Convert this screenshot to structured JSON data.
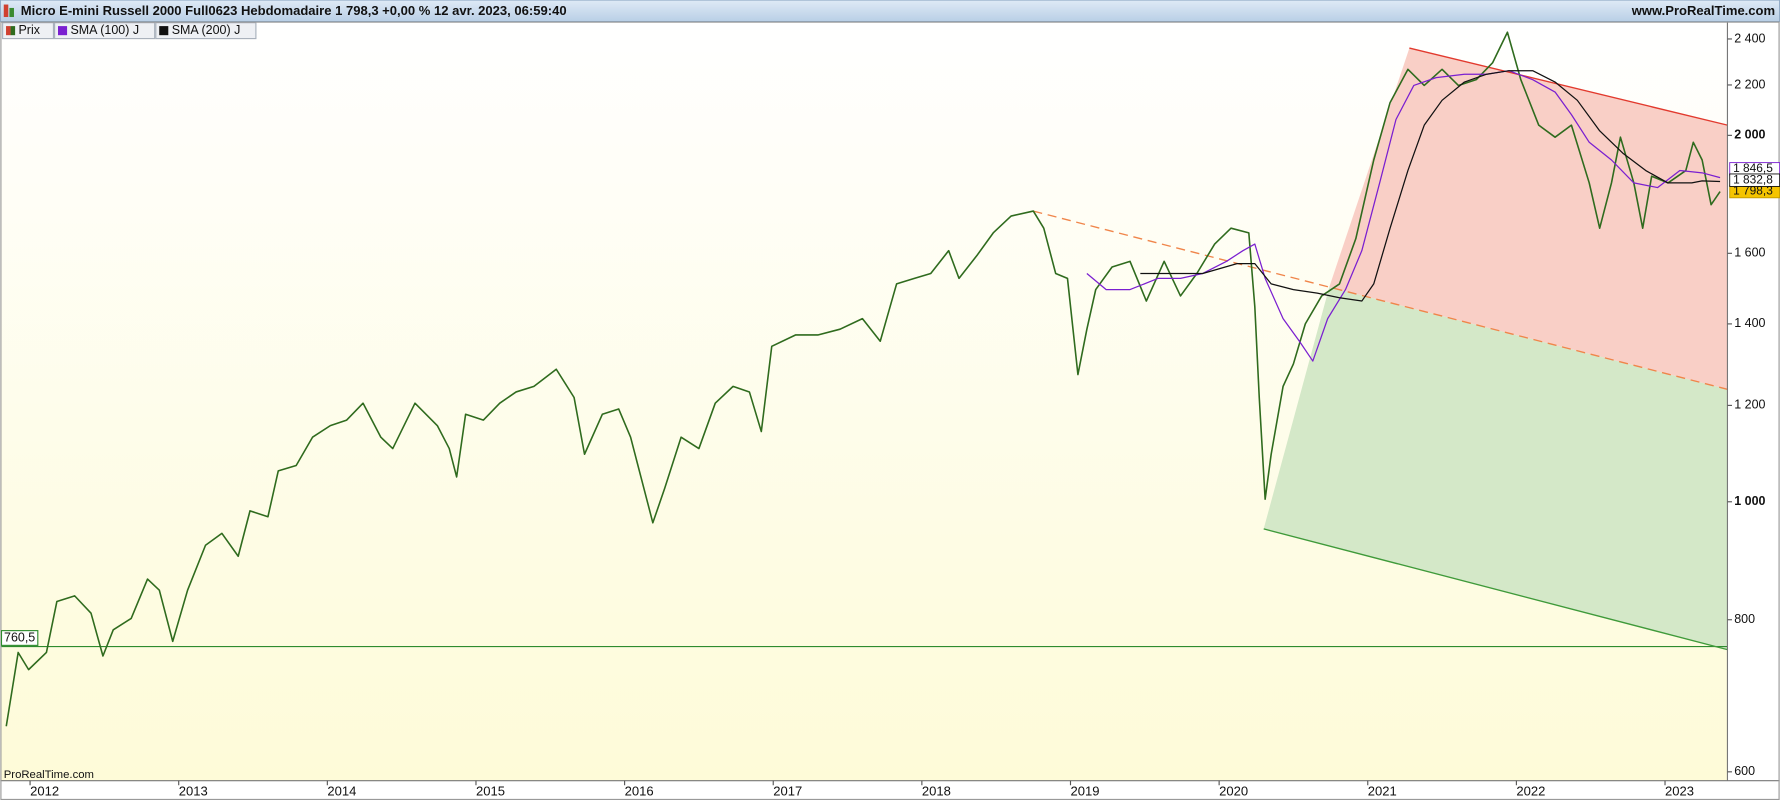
{
  "chart_data": {
    "type": "line",
    "title": "Micro E-mini Russell 2000 Full0623 Hebdomadaire 1 798,3 +0,00 % 12 avr. 2023, 06:59:40",
    "source": "www.ProRealTime.com",
    "watermark": "ProRealTime.com",
    "yscale": "log",
    "xlim": [
      2011.8,
      2023.42
    ],
    "xticks": [
      2012,
      2013,
      2014,
      2015,
      2016,
      2017,
      2018,
      2019,
      2020,
      2021,
      2022,
      2023
    ],
    "ylim": [
      590,
      2475
    ],
    "yticks": [
      {
        "value": 2400,
        "label": "2 400"
      },
      {
        "value": 2200,
        "label": "2 200"
      },
      {
        "value": 2000,
        "label": "2 000"
      },
      {
        "value": 1600,
        "label": "1 600"
      },
      {
        "value": 1400,
        "label": "1 400"
      },
      {
        "value": 1200,
        "label": "1 200"
      },
      {
        "value": 1000,
        "label": "1 000"
      },
      800,
      600
    ],
    "series": [
      {
        "name": "Prix",
        "color": "#2f6b1e",
        "last_label": "1 798,3",
        "x": [
          2011.84,
          2011.92,
          2011.99,
          2012.11,
          2012.18,
          2012.3,
          2012.41,
          2012.49,
          2012.56,
          2012.68,
          2012.79,
          2012.87,
          2012.96,
          2013.06,
          2013.18,
          2013.29,
          2013.4,
          2013.48,
          2013.6,
          2013.67,
          2013.79,
          2013.9,
          2014.02,
          2014.13,
          2014.24,
          2014.36,
          2014.44,
          2014.59,
          2014.74,
          2014.82,
          2014.87,
          2014.93,
          2015.05,
          2015.16,
          2015.27,
          2015.39,
          2015.54,
          2015.66,
          2015.73,
          2015.85,
          2015.96,
          2016.04,
          2016.11,
          2016.19,
          2016.27,
          2016.38,
          2016.5,
          2016.61,
          2016.73,
          2016.84,
          2016.92,
          2016.99,
          2017.15,
          2017.3,
          2017.45,
          2017.6,
          2017.72,
          2017.83,
          2017.95,
          2018.06,
          2018.18,
          2018.25,
          2018.37,
          2018.48,
          2018.6,
          2018.75,
          2018.82,
          2018.9,
          2018.98,
          2019.05,
          2019.11,
          2019.17,
          2019.28,
          2019.4,
          2019.51,
          2019.63,
          2019.74,
          2019.85,
          2019.97,
          2020.08,
          2020.2,
          2020.24,
          2020.27,
          2020.31,
          2020.35,
          2020.43,
          2020.5,
          2020.58,
          2020.69,
          2020.81,
          2020.92,
          2021.04,
          2021.15,
          2021.27,
          2021.38,
          2021.5,
          2021.61,
          2021.73,
          2021.84,
          2021.94,
          2022.03,
          2022.15,
          2022.26,
          2022.37,
          2022.49,
          2022.56,
          2022.64,
          2022.7,
          2022.79,
          2022.85,
          2022.91,
          2023.02,
          2023.14,
          2023.19,
          2023.25,
          2023.31,
          2023.37
        ],
        "values": [
          654,
          752,
          728,
          752,
          828,
          837,
          810,
          747,
          785,
          802,
          864,
          846,
          768,
          846,
          921,
          942,
          902,
          983,
          972,
          1060,
          1071,
          1130,
          1155,
          1167,
          1205,
          1130,
          1106,
          1205,
          1155,
          1106,
          1048,
          1180,
          1167,
          1205,
          1231,
          1244,
          1285,
          1218,
          1094,
          1180,
          1192,
          1130,
          1048,
          961,
          1026,
          1130,
          1106,
          1205,
          1244,
          1231,
          1142,
          1342,
          1371,
          1371,
          1386,
          1414,
          1355,
          1510,
          1526,
          1540,
          1608,
          1526,
          1593,
          1663,
          1717,
          1733,
          1678,
          1540,
          1526,
          1272,
          1386,
          1494,
          1559,
          1576,
          1462,
          1576,
          1476,
          1540,
          1628,
          1678,
          1663,
          1446,
          1218,
          1005,
          1094,
          1244,
          1298,
          1400,
          1476,
          1510,
          1645,
          1909,
          2128,
          2266,
          2198,
          2266,
          2198,
          2222,
          2294,
          2431,
          2222,
          2039,
          1993,
          2039,
          1828,
          1678,
          1828,
          1993,
          1828,
          1678,
          1851,
          1828,
          1871,
          1974,
          1909,
          1754,
          1798.3
        ]
      },
      {
        "name": "SMA (100) J",
        "color": "#7a1fd0",
        "last_label": "1 846,5",
        "x": [
          2019.11,
          2019.24,
          2019.4,
          2019.59,
          2019.74,
          2019.89,
          2020.05,
          2020.16,
          2020.24,
          2020.31,
          2020.43,
          2020.54,
          2020.63,
          2020.73,
          2020.85,
          2020.96,
          2021.08,
          2021.19,
          2021.31,
          2021.46,
          2021.65,
          2021.8,
          2021.95,
          2022.11,
          2022.26,
          2022.37,
          2022.49,
          2022.64,
          2022.79,
          2022.95,
          2023.1,
          2023.25,
          2023.37
        ],
        "values": [
          1540,
          1494,
          1494,
          1526,
          1526,
          1540,
          1576,
          1608,
          1628,
          1526,
          1414,
          1355,
          1305,
          1414,
          1494,
          1608,
          1828,
          2061,
          2198,
          2231,
          2245,
          2245,
          2260,
          2222,
          2171,
          2080,
          1974,
          1909,
          1828,
          1812,
          1871,
          1863,
          1846.5
        ]
      },
      {
        "name": "SMA (200) J",
        "color": "#111111",
        "last_label": "1 832,8",
        "x": [
          2019.47,
          2019.66,
          2019.89,
          2020.12,
          2020.24,
          2020.35,
          2020.5,
          2020.66,
          2020.81,
          2020.96,
          2021.04,
          2021.15,
          2021.27,
          2021.38,
          2021.5,
          2021.65,
          2021.8,
          2021.95,
          2022.11,
          2022.26,
          2022.41,
          2022.56,
          2022.72,
          2022.87,
          2023.02,
          2023.18,
          2023.25,
          2023.37
        ],
        "values": [
          1540,
          1540,
          1540,
          1569,
          1569,
          1510,
          1494,
          1484,
          1471,
          1462,
          1510,
          1678,
          1871,
          2039,
          2137,
          2212,
          2245,
          2260,
          2260,
          2212,
          2137,
          2017,
          1932,
          1871,
          1828,
          1828,
          1835,
          1832.8
        ]
      }
    ],
    "levels": [
      {
        "value": 760.5,
        "label": "760,5",
        "color": "#2e8b2e"
      }
    ],
    "trendlines": [
      {
        "x": [
          2021.28,
          2023.42
        ],
        "values": [
          2359,
          2039
        ],
        "color": "#e23a2e",
        "style": "solid",
        "fill": "#f9cfc6"
      },
      {
        "x": [
          2018.75,
          2023.42
        ],
        "values": [
          1733,
          1237
        ],
        "color": "#f0854a",
        "style": "dashed"
      },
      {
        "x": [
          2020.3,
          2023.42
        ],
        "values": [
          950,
          756
        ],
        "color": "#3f9a3a",
        "style": "solid",
        "fill": "#d4e8c8"
      }
    ]
  }
}
